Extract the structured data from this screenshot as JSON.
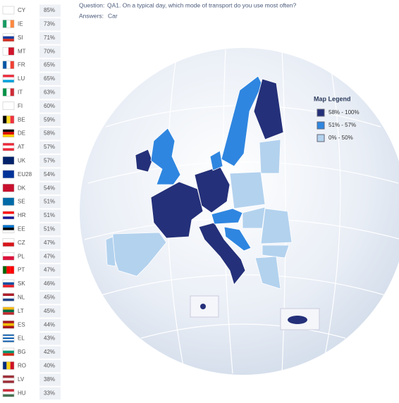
{
  "question": {
    "label": "Question:",
    "text": "QA1. On a typical day, which mode of transport do you use most often?"
  },
  "answers": {
    "label": "Answers:",
    "text": "Car"
  },
  "countries": [
    {
      "code": "CY",
      "value": "85%"
    },
    {
      "code": "IE",
      "value": "73%"
    },
    {
      "code": "SI",
      "value": "71%"
    },
    {
      "code": "MT",
      "value": "70%"
    },
    {
      "code": "FR",
      "value": "65%"
    },
    {
      "code": "LU",
      "value": "65%"
    },
    {
      "code": "IT",
      "value": "63%"
    },
    {
      "code": "FI",
      "value": "60%"
    },
    {
      "code": "BE",
      "value": "59%"
    },
    {
      "code": "DE",
      "value": "58%"
    },
    {
      "code": "AT",
      "value": "57%"
    },
    {
      "code": "UK",
      "value": "57%"
    },
    {
      "code": "EU28",
      "value": "54%"
    },
    {
      "code": "DK",
      "value": "54%"
    },
    {
      "code": "SE",
      "value": "51%"
    },
    {
      "code": "HR",
      "value": "51%"
    },
    {
      "code": "EE",
      "value": "51%"
    },
    {
      "code": "CZ",
      "value": "47%"
    },
    {
      "code": "PL",
      "value": "47%"
    },
    {
      "code": "PT",
      "value": "47%"
    },
    {
      "code": "SK",
      "value": "46%"
    },
    {
      "code": "NL",
      "value": "45%"
    },
    {
      "code": "LT",
      "value": "45%"
    },
    {
      "code": "ES",
      "value": "44%"
    },
    {
      "code": "EL",
      "value": "43%"
    },
    {
      "code": "BG",
      "value": "42%"
    },
    {
      "code": "RO",
      "value": "40%"
    },
    {
      "code": "LV",
      "value": "38%"
    },
    {
      "code": "HU",
      "value": "33%"
    }
  ],
  "legend": {
    "title": "Map Legend",
    "items": [
      "58% - 100%",
      "51% - 57%",
      "0% - 50%"
    ]
  }
}
